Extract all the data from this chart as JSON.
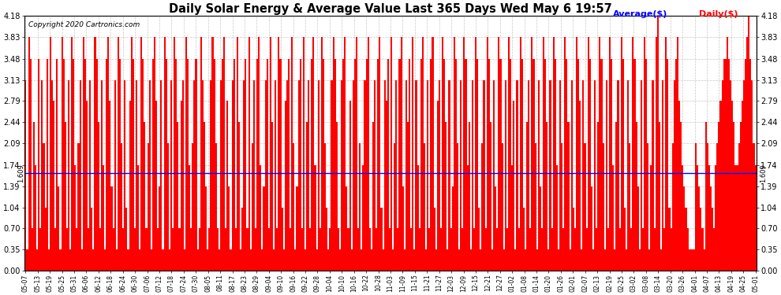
{
  "title": "Daily Solar Energy & Average Value Last 365 Days Wed May 6 19:57",
  "copyright": "Copyright 2020 Cartronics.com",
  "average_label": "Average($)",
  "daily_label": "Daily($)",
  "average_value": 1.609,
  "ylim": [
    0,
    4.18
  ],
  "yticks": [
    0.0,
    0.35,
    0.7,
    1.04,
    1.39,
    1.74,
    2.09,
    2.44,
    2.79,
    3.13,
    3.48,
    3.83,
    4.18
  ],
  "bar_color": "#ff0000",
  "average_line_color": "#0000ff",
  "background_color": "#ffffff",
  "grid_color": "#b0b0b0",
  "title_color": "#000000",
  "average_label_color": "#0000ff",
  "daily_label_color": "#ff0000",
  "x_labels": [
    "05-07",
    "05-13",
    "05-19",
    "05-25",
    "05-31",
    "06-06",
    "06-12",
    "06-18",
    "06-24",
    "06-30",
    "07-06",
    "07-12",
    "07-18",
    "07-24",
    "07-30",
    "08-05",
    "08-11",
    "08-17",
    "08-23",
    "08-29",
    "09-04",
    "09-10",
    "09-16",
    "09-22",
    "09-28",
    "10-04",
    "10-10",
    "10-16",
    "10-22",
    "10-28",
    "11-03",
    "11-09",
    "11-15",
    "11-21",
    "11-27",
    "12-03",
    "12-09",
    "12-15",
    "12-21",
    "12-27",
    "01-02",
    "01-08",
    "01-14",
    "01-20",
    "01-26",
    "02-01",
    "02-07",
    "02-13",
    "02-19",
    "02-25",
    "03-02",
    "03-08",
    "03-14",
    "03-20",
    "03-26",
    "04-01",
    "04-07",
    "04-13",
    "04-19",
    "04-25",
    "05-01"
  ],
  "values": [
    3.13,
    0.35,
    3.83,
    3.48,
    0.7,
    2.44,
    1.74,
    0.35,
    3.48,
    0.7,
    3.13,
    2.09,
    1.04,
    3.48,
    0.35,
    3.83,
    3.13,
    2.79,
    0.7,
    3.48,
    1.39,
    0.35,
    3.83,
    3.48,
    2.44,
    0.7,
    3.13,
    0.35,
    3.83,
    3.48,
    1.74,
    0.7,
    2.09,
    3.13,
    0.35,
    3.83,
    3.48,
    2.79,
    0.7,
    3.13,
    1.04,
    0.35,
    3.83,
    3.48,
    2.44,
    0.7,
    3.13,
    1.74,
    0.35,
    3.48,
    3.83,
    2.79,
    1.39,
    0.7,
    3.13,
    0.35,
    3.83,
    3.48,
    2.09,
    0.7,
    3.13,
    1.04,
    0.35,
    2.79,
    3.83,
    3.48,
    0.7,
    3.13,
    1.74,
    0.35,
    3.83,
    3.48,
    2.44,
    0.7,
    2.09,
    3.13,
    0.35,
    3.48,
    3.83,
    2.79,
    0.7,
    1.39,
    3.13,
    0.35,
    3.83,
    3.48,
    2.09,
    0.35,
    3.13,
    0.7,
    3.83,
    3.48,
    2.44,
    0.7,
    2.79,
    3.13,
    0.35,
    3.83,
    3.48,
    1.74,
    0.7,
    2.09,
    3.13,
    3.48,
    0.35,
    0.7,
    3.83,
    3.13,
    2.44,
    1.39,
    0.35,
    0.7,
    3.13,
    3.83,
    3.48,
    2.09,
    0.7,
    0.35,
    3.13,
    3.48,
    3.83,
    0.7,
    2.79,
    1.39,
    0.35,
    3.13,
    3.48,
    0.7,
    3.83,
    2.44,
    0.35,
    1.04,
    3.13,
    3.48,
    0.7,
    3.83,
    0.35,
    2.09,
    3.13,
    0.7,
    3.48,
    3.83,
    1.74,
    0.35,
    1.39,
    3.13,
    3.48,
    0.7,
    3.83,
    2.44,
    0.35,
    3.13,
    0.7,
    3.83,
    3.48,
    1.04,
    0.35,
    2.79,
    3.13,
    3.48,
    0.7,
    3.83,
    2.09,
    0.35,
    1.39,
    3.13,
    3.48,
    0.7,
    3.83,
    0.35,
    2.44,
    3.13,
    0.7,
    3.48,
    3.83,
    1.74,
    0.35,
    3.13,
    0.7,
    3.83,
    3.48,
    2.09,
    1.04,
    0.35,
    0.7,
    3.13,
    3.83,
    3.48,
    2.44,
    0.7,
    0.35,
    3.13,
    3.48,
    3.83,
    1.39,
    0.7,
    2.79,
    0.35,
    3.13,
    3.48,
    3.83,
    0.7,
    2.09,
    0.35,
    1.74,
    3.13,
    3.48,
    3.83,
    0.7,
    0.35,
    2.44,
    3.13,
    0.7,
    3.48,
    3.83,
    1.04,
    0.35,
    3.13,
    2.79,
    3.48,
    0.7,
    3.83,
    0.35,
    2.09,
    3.13,
    0.7,
    3.48,
    3.83,
    1.39,
    0.35,
    3.13,
    2.44,
    3.48,
    0.7,
    3.83,
    0.35,
    3.13,
    1.74,
    0.7,
    3.48,
    3.83,
    2.09,
    0.35,
    3.13,
    0.7,
    3.48,
    3.83,
    1.04,
    0.35,
    2.79,
    3.13,
    0.7,
    3.83,
    3.48,
    2.44,
    0.35,
    3.13,
    0.7,
    1.39,
    3.83,
    3.48,
    2.09,
    0.35,
    3.13,
    0.7,
    3.83,
    3.48,
    1.74,
    2.44,
    0.35,
    3.13,
    0.7,
    3.83,
    3.48,
    1.04,
    0.35,
    2.09,
    3.13,
    0.7,
    3.83,
    3.48,
    2.44,
    0.35,
    3.13,
    1.39,
    0.7,
    3.83,
    3.48,
    2.09,
    0.35,
    3.13,
    0.7,
    3.83,
    3.48,
    1.74,
    2.79,
    0.35,
    3.13,
    0.7,
    3.83,
    3.48,
    1.04,
    0.35,
    2.44,
    3.13,
    0.7,
    3.83,
    3.48,
    2.09,
    0.35,
    3.13,
    1.39,
    0.7,
    3.83,
    3.48,
    2.44,
    0.35,
    3.13,
    0.7,
    3.83,
    3.48,
    1.74,
    0.35,
    3.13,
    2.09,
    0.7,
    3.83,
    3.48,
    2.44,
    0.35,
    3.13,
    1.04,
    0.7,
    3.83,
    3.48,
    2.79,
    0.35,
    3.13,
    2.09,
    0.7,
    3.83,
    3.48,
    1.39,
    0.35,
    3.13,
    0.7,
    2.44,
    3.83,
    3.48,
    2.09,
    0.35,
    3.13,
    0.7,
    3.83,
    3.48,
    1.74,
    0.35,
    2.44,
    3.13,
    0.7,
    3.83,
    3.48,
    1.04,
    0.35,
    3.13,
    2.09,
    0.7,
    3.83,
    3.48,
    2.44,
    1.39,
    0.35,
    3.13,
    0.7,
    3.83,
    3.48,
    2.09,
    0.35,
    1.74,
    3.13,
    0.7,
    3.83,
    4.18,
    2.44,
    0.35,
    3.13,
    0.7,
    3.83,
    3.48,
    1.04,
    0.7,
    2.09,
    3.13,
    3.48,
    3.83,
    2.79,
    2.44,
    1.74,
    1.39,
    1.04,
    0.7,
    0.35,
    0.35,
    0.35,
    0.35,
    2.09,
    1.74,
    1.39,
    1.04,
    0.7,
    0.35,
    2.44,
    2.09,
    1.74,
    1.39,
    1.04,
    0.7,
    1.74,
    2.09,
    2.44,
    2.79,
    3.13,
    3.48,
    3.48,
    3.83,
    3.48,
    3.13,
    2.79,
    2.44,
    1.74,
    1.74,
    2.09,
    2.44,
    2.79,
    3.13,
    3.48,
    3.83,
    4.18,
    3.48,
    3.13,
    2.09,
    1.74
  ]
}
